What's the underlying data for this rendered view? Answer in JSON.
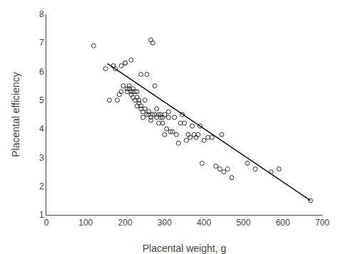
{
  "chart_data": {
    "type": "scatter",
    "xlabel": "Placental weight, g",
    "ylabel": "Placental efficiency",
    "series": [
      {
        "type": "scatter",
        "marker": "circle-open",
        "color": "#333333",
        "x": [
          120,
          150,
          160,
          170,
          175,
          180,
          185,
          190,
          190,
          195,
          200,
          200,
          205,
          205,
          210,
          210,
          215,
          215,
          215,
          220,
          220,
          220,
          225,
          225,
          230,
          230,
          230,
          235,
          235,
          240,
          240,
          240,
          245,
          245,
          250,
          250,
          255,
          255,
          260,
          260,
          265,
          265,
          265,
          270,
          270,
          275,
          275,
          280,
          280,
          285,
          285,
          290,
          290,
          295,
          295,
          300,
          300,
          305,
          310,
          310,
          315,
          320,
          325,
          330,
          335,
          340,
          345,
          350,
          355,
          360,
          365,
          370,
          375,
          380,
          385,
          390,
          395,
          400,
          410,
          420,
          430,
          440,
          445,
          450,
          460,
          470,
          510,
          530,
          570,
          590,
          670
        ],
        "values": [
          6.9,
          6.1,
          5.0,
          6.2,
          6.1,
          5.0,
          5.2,
          6.2,
          5.3,
          5.5,
          6.3,
          6.3,
          5.3,
          5.4,
          5.4,
          5.5,
          5.3,
          5.2,
          6.4,
          5.1,
          5.3,
          5.4,
          5.0,
          5.3,
          4.8,
          5.1,
          5.3,
          4.9,
          5.0,
          4.7,
          4.8,
          5.9,
          4.4,
          4.6,
          4.7,
          5.0,
          4.5,
          5.9,
          4.5,
          4.6,
          4.3,
          4.4,
          7.1,
          4.5,
          7.0,
          4.5,
          5.5,
          4.4,
          4.7,
          4.2,
          4.5,
          4.4,
          4.5,
          4.2,
          4.4,
          4.5,
          3.8,
          4.0,
          4.4,
          4.6,
          3.9,
          3.9,
          4.4,
          3.8,
          3.5,
          4.2,
          4.5,
          4.2,
          3.6,
          3.8,
          3.7,
          4.1,
          3.8,
          3.7,
          3.8,
          4.1,
          2.8,
          3.6,
          3.7,
          3.7,
          2.7,
          2.6,
          3.8,
          2.5,
          2.6,
          2.3,
          2.8,
          2.6,
          2.5,
          2.6,
          1.5
        ]
      },
      {
        "type": "line",
        "color": "#111111",
        "x": [
          155,
          670
        ],
        "values": [
          6.28,
          1.5
        ]
      }
    ],
    "xlim": [
      0,
      700
    ],
    "ylim": [
      1,
      8
    ],
    "xticks": [
      0,
      100,
      200,
      300,
      400,
      500,
      600,
      700
    ],
    "yticks": [
      1,
      2,
      3,
      4,
      5,
      6,
      7,
      8
    ],
    "grid": false
  }
}
